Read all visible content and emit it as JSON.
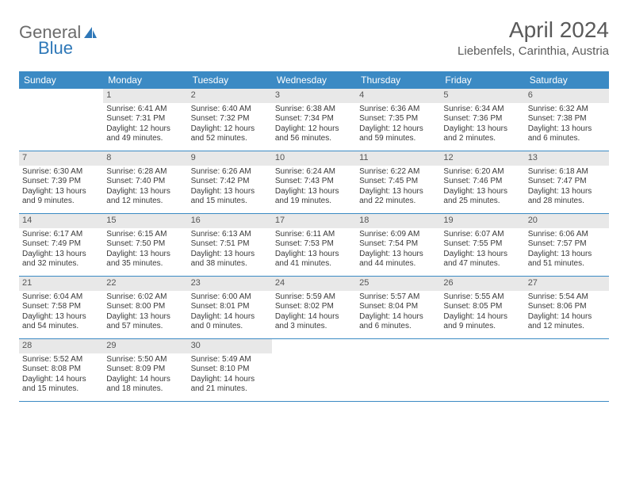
{
  "brand": {
    "part1": "General",
    "part2": "Blue"
  },
  "header": {
    "title": "April 2024",
    "location": "Liebenfels, Carinthia, Austria"
  },
  "colors": {
    "header_bg": "#3b8ac4",
    "header_text": "#ffffff",
    "daynum_bg": "#e8e8e8",
    "text": "#3a3a3a",
    "brand_gray": "#6b6b6b",
    "brand_blue": "#2f78b8"
  },
  "weekdays": [
    "Sunday",
    "Monday",
    "Tuesday",
    "Wednesday",
    "Thursday",
    "Friday",
    "Saturday"
  ],
  "weeks": [
    [
      null,
      {
        "n": "1",
        "sr": "Sunrise: 6:41 AM",
        "ss": "Sunset: 7:31 PM",
        "d1": "Daylight: 12 hours",
        "d2": "and 49 minutes."
      },
      {
        "n": "2",
        "sr": "Sunrise: 6:40 AM",
        "ss": "Sunset: 7:32 PM",
        "d1": "Daylight: 12 hours",
        "d2": "and 52 minutes."
      },
      {
        "n": "3",
        "sr": "Sunrise: 6:38 AM",
        "ss": "Sunset: 7:34 PM",
        "d1": "Daylight: 12 hours",
        "d2": "and 56 minutes."
      },
      {
        "n": "4",
        "sr": "Sunrise: 6:36 AM",
        "ss": "Sunset: 7:35 PM",
        "d1": "Daylight: 12 hours",
        "d2": "and 59 minutes."
      },
      {
        "n": "5",
        "sr": "Sunrise: 6:34 AM",
        "ss": "Sunset: 7:36 PM",
        "d1": "Daylight: 13 hours",
        "d2": "and 2 minutes."
      },
      {
        "n": "6",
        "sr": "Sunrise: 6:32 AM",
        "ss": "Sunset: 7:38 PM",
        "d1": "Daylight: 13 hours",
        "d2": "and 6 minutes."
      }
    ],
    [
      {
        "n": "7",
        "sr": "Sunrise: 6:30 AM",
        "ss": "Sunset: 7:39 PM",
        "d1": "Daylight: 13 hours",
        "d2": "and 9 minutes."
      },
      {
        "n": "8",
        "sr": "Sunrise: 6:28 AM",
        "ss": "Sunset: 7:40 PM",
        "d1": "Daylight: 13 hours",
        "d2": "and 12 minutes."
      },
      {
        "n": "9",
        "sr": "Sunrise: 6:26 AM",
        "ss": "Sunset: 7:42 PM",
        "d1": "Daylight: 13 hours",
        "d2": "and 15 minutes."
      },
      {
        "n": "10",
        "sr": "Sunrise: 6:24 AM",
        "ss": "Sunset: 7:43 PM",
        "d1": "Daylight: 13 hours",
        "d2": "and 19 minutes."
      },
      {
        "n": "11",
        "sr": "Sunrise: 6:22 AM",
        "ss": "Sunset: 7:45 PM",
        "d1": "Daylight: 13 hours",
        "d2": "and 22 minutes."
      },
      {
        "n": "12",
        "sr": "Sunrise: 6:20 AM",
        "ss": "Sunset: 7:46 PM",
        "d1": "Daylight: 13 hours",
        "d2": "and 25 minutes."
      },
      {
        "n": "13",
        "sr": "Sunrise: 6:18 AM",
        "ss": "Sunset: 7:47 PM",
        "d1": "Daylight: 13 hours",
        "d2": "and 28 minutes."
      }
    ],
    [
      {
        "n": "14",
        "sr": "Sunrise: 6:17 AM",
        "ss": "Sunset: 7:49 PM",
        "d1": "Daylight: 13 hours",
        "d2": "and 32 minutes."
      },
      {
        "n": "15",
        "sr": "Sunrise: 6:15 AM",
        "ss": "Sunset: 7:50 PM",
        "d1": "Daylight: 13 hours",
        "d2": "and 35 minutes."
      },
      {
        "n": "16",
        "sr": "Sunrise: 6:13 AM",
        "ss": "Sunset: 7:51 PM",
        "d1": "Daylight: 13 hours",
        "d2": "and 38 minutes."
      },
      {
        "n": "17",
        "sr": "Sunrise: 6:11 AM",
        "ss": "Sunset: 7:53 PM",
        "d1": "Daylight: 13 hours",
        "d2": "and 41 minutes."
      },
      {
        "n": "18",
        "sr": "Sunrise: 6:09 AM",
        "ss": "Sunset: 7:54 PM",
        "d1": "Daylight: 13 hours",
        "d2": "and 44 minutes."
      },
      {
        "n": "19",
        "sr": "Sunrise: 6:07 AM",
        "ss": "Sunset: 7:55 PM",
        "d1": "Daylight: 13 hours",
        "d2": "and 47 minutes."
      },
      {
        "n": "20",
        "sr": "Sunrise: 6:06 AM",
        "ss": "Sunset: 7:57 PM",
        "d1": "Daylight: 13 hours",
        "d2": "and 51 minutes."
      }
    ],
    [
      {
        "n": "21",
        "sr": "Sunrise: 6:04 AM",
        "ss": "Sunset: 7:58 PM",
        "d1": "Daylight: 13 hours",
        "d2": "and 54 minutes."
      },
      {
        "n": "22",
        "sr": "Sunrise: 6:02 AM",
        "ss": "Sunset: 8:00 PM",
        "d1": "Daylight: 13 hours",
        "d2": "and 57 minutes."
      },
      {
        "n": "23",
        "sr": "Sunrise: 6:00 AM",
        "ss": "Sunset: 8:01 PM",
        "d1": "Daylight: 14 hours",
        "d2": "and 0 minutes."
      },
      {
        "n": "24",
        "sr": "Sunrise: 5:59 AM",
        "ss": "Sunset: 8:02 PM",
        "d1": "Daylight: 14 hours",
        "d2": "and 3 minutes."
      },
      {
        "n": "25",
        "sr": "Sunrise: 5:57 AM",
        "ss": "Sunset: 8:04 PM",
        "d1": "Daylight: 14 hours",
        "d2": "and 6 minutes."
      },
      {
        "n": "26",
        "sr": "Sunrise: 5:55 AM",
        "ss": "Sunset: 8:05 PM",
        "d1": "Daylight: 14 hours",
        "d2": "and 9 minutes."
      },
      {
        "n": "27",
        "sr": "Sunrise: 5:54 AM",
        "ss": "Sunset: 8:06 PM",
        "d1": "Daylight: 14 hours",
        "d2": "and 12 minutes."
      }
    ],
    [
      {
        "n": "28",
        "sr": "Sunrise: 5:52 AM",
        "ss": "Sunset: 8:08 PM",
        "d1": "Daylight: 14 hours",
        "d2": "and 15 minutes."
      },
      {
        "n": "29",
        "sr": "Sunrise: 5:50 AM",
        "ss": "Sunset: 8:09 PM",
        "d1": "Daylight: 14 hours",
        "d2": "and 18 minutes."
      },
      {
        "n": "30",
        "sr": "Sunrise: 5:49 AM",
        "ss": "Sunset: 8:10 PM",
        "d1": "Daylight: 14 hours",
        "d2": "and 21 minutes."
      },
      null,
      null,
      null,
      null
    ]
  ]
}
